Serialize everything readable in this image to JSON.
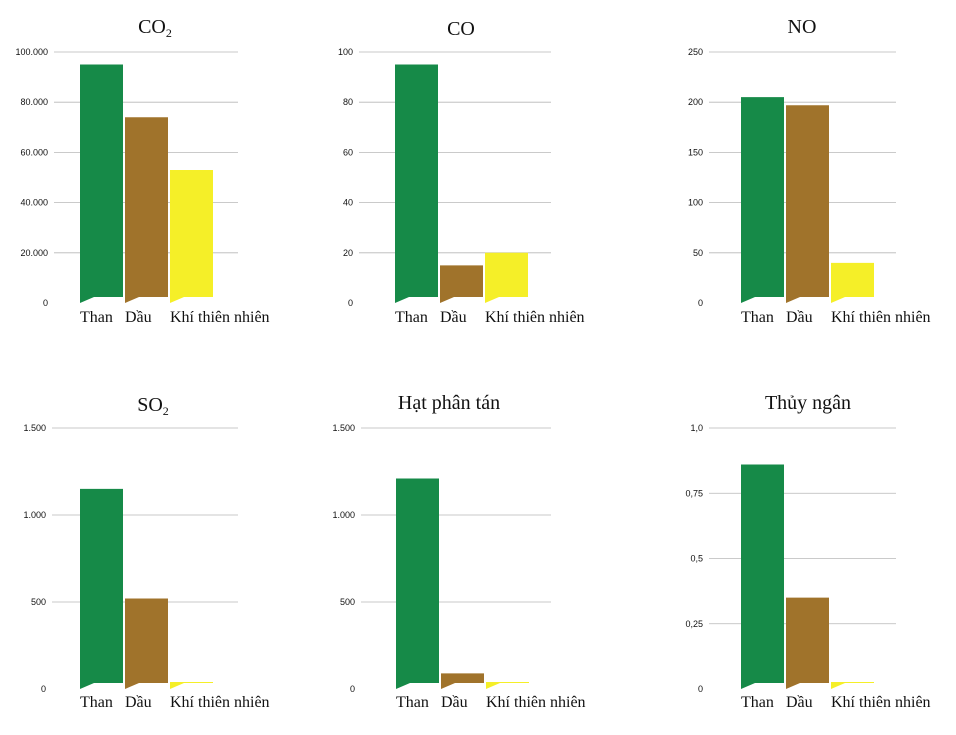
{
  "colors": {
    "coal": "#168a48",
    "oil": "#a0732b",
    "gas": "#f5ef28",
    "grid": "#b8b8b8"
  },
  "chart_data": [
    {
      "type": "bar",
      "title_main": "CO",
      "title_sub": "2",
      "categories": [
        "Than",
        "Dầu",
        "Khí thiên nhiên"
      ],
      "values": [
        95000,
        74000,
        53000
      ],
      "ylim": [
        0,
        100000
      ],
      "yticks": [
        0,
        20000,
        40000,
        60000,
        80000,
        100000
      ],
      "ytick_labels": [
        "0",
        "20.000",
        "40.000",
        "60.000",
        "80.000",
        "100.000"
      ]
    },
    {
      "type": "bar",
      "title_main": "CO",
      "title_sub": "",
      "categories": [
        "Than",
        "Dầu",
        "Khí thiên nhiên"
      ],
      "values": [
        95,
        15,
        20
      ],
      "ylim": [
        0,
        100
      ],
      "yticks": [
        0,
        20,
        40,
        60,
        80,
        100
      ],
      "ytick_labels": [
        "0",
        "20",
        "40",
        "60",
        "80",
        "100"
      ]
    },
    {
      "type": "bar",
      "title_main": "NO",
      "title_sub": "",
      "categories": [
        "Than",
        "Dầu",
        "Khí thiên nhiên"
      ],
      "values": [
        205,
        197,
        40
      ],
      "ylim": [
        0,
        250
      ],
      "yticks": [
        0,
        50,
        100,
        150,
        200,
        250
      ],
      "ytick_labels": [
        "0",
        "50",
        "100",
        "150",
        "200",
        "250"
      ]
    },
    {
      "type": "bar",
      "title_main": "SO",
      "title_sub": "2",
      "categories": [
        "Than",
        "Dầu",
        "Khí thiên nhiên"
      ],
      "values": [
        1150,
        520,
        7
      ],
      "ylim": [
        0,
        1500
      ],
      "yticks": [
        0,
        500,
        1000,
        1500
      ],
      "ytick_labels": [
        "0",
        "500",
        "1.000",
        "1.500"
      ]
    },
    {
      "type": "bar",
      "title_main": "Hạt phân tán",
      "title_sub": "",
      "categories": [
        "Than",
        "Dầu",
        "Khí thiên nhiên"
      ],
      "values": [
        1210,
        90,
        5
      ],
      "ylim": [
        0,
        1500
      ],
      "yticks": [
        0,
        500,
        1000,
        1500
      ],
      "ytick_labels": [
        "0",
        "500",
        "1.000",
        "1.500"
      ]
    },
    {
      "type": "bar",
      "title_main": "Thủy ngân",
      "title_sub": "",
      "categories": [
        "Than",
        "Dầu",
        "Khí thiên nhiên"
      ],
      "values": [
        0.86,
        0.35,
        0.005
      ],
      "ylim": [
        0,
        1
      ],
      "yticks": [
        0,
        0.25,
        0.5,
        0.75,
        1
      ],
      "ytick_labels": [
        "0",
        "0,25",
        "0,5",
        "0,75",
        "1,0"
      ]
    }
  ]
}
